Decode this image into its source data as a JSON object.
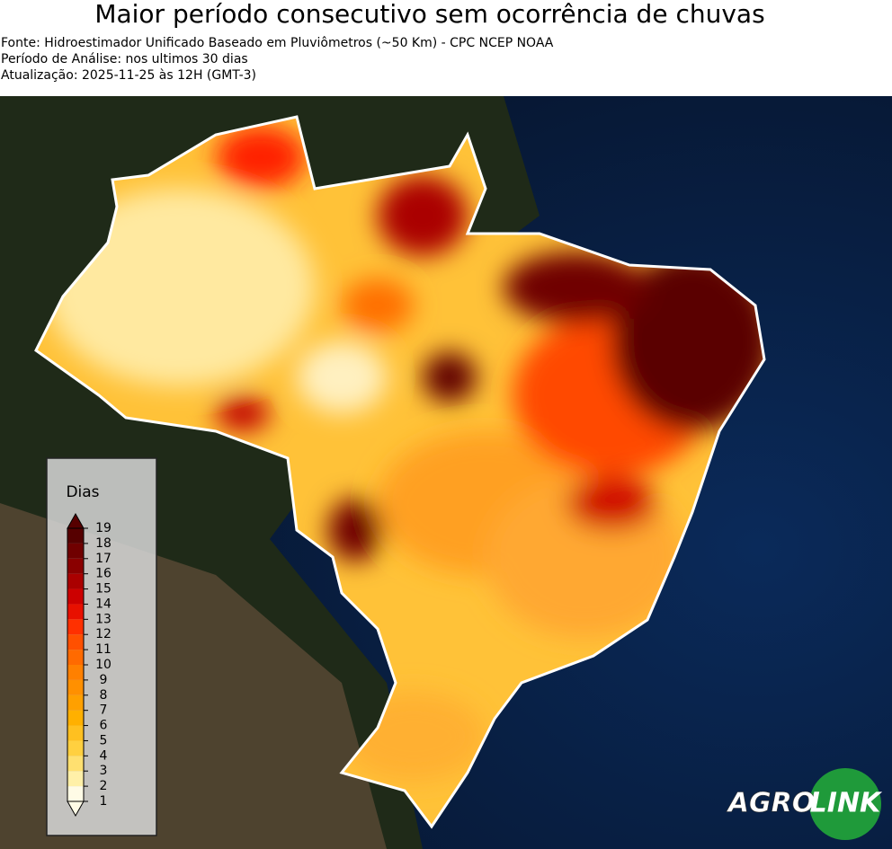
{
  "header": {
    "title": "Maior período consecutivo sem ocorrência de chuvas",
    "lines": [
      "Fonte: Hidroestimador Unificado Baseado em Pluviômetros (~50 Km) - CPC NCEP NOAA",
      "Período de Análise: nos ultimos 30 dias",
      "Atualização: 2025-11-25 às 12H (GMT-3)"
    ]
  },
  "legend": {
    "title": "Dias",
    "ticks": [
      1,
      2,
      3,
      4,
      5,
      6,
      7,
      8,
      9,
      10,
      11,
      12,
      13,
      14,
      15,
      16,
      17,
      18,
      19
    ],
    "colors": [
      "#fffbe6",
      "#fff0a8",
      "#ffe070",
      "#ffd040",
      "#ffc020",
      "#ffb000",
      "#ffa000",
      "#ff9000",
      "#ff8000",
      "#ff6a00",
      "#ff5000",
      "#ff3000",
      "#e81000",
      "#cc0000",
      "#aa0000",
      "#8a0000",
      "#700000",
      "#560000"
    ]
  },
  "logo": {
    "left": "AGRO",
    "right": "LINK"
  }
}
